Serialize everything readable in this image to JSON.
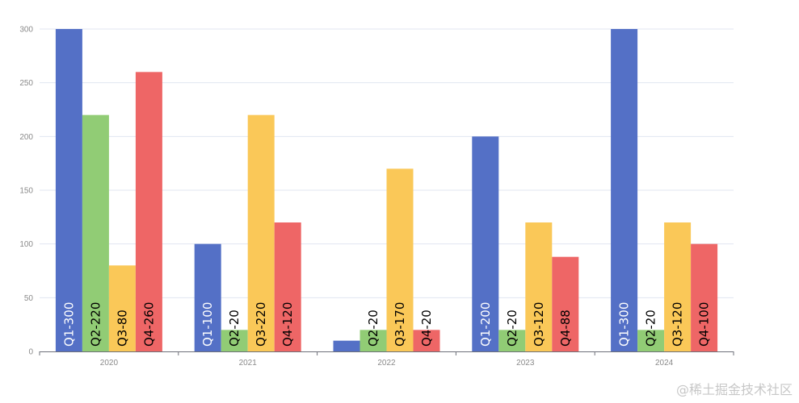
{
  "chart_data": {
    "type": "bar",
    "categories": [
      "2020",
      "2021",
      "2022",
      "2023",
      "2024"
    ],
    "series": [
      {
        "name": "Q1",
        "values": [
          300,
          100,
          10,
          200,
          300
        ],
        "color": "#5470c6"
      },
      {
        "name": "Q2",
        "values": [
          220,
          20,
          20,
          20,
          20
        ],
        "color": "#91cc75"
      },
      {
        "name": "Q3",
        "values": [
          80,
          220,
          170,
          120,
          120
        ],
        "color": "#fac858"
      },
      {
        "name": "Q4",
        "values": [
          260,
          120,
          20,
          88,
          100
        ],
        "color": "#ee6666"
      }
    ],
    "data_labels": [
      [
        "Q1-300",
        "Q2-220",
        "Q3-80",
        "Q4-260"
      ],
      [
        "Q1-100",
        "Q2-20",
        "Q3-220",
        "Q4-120"
      ],
      [
        "",
        "Q2-20",
        "Q3-170",
        "Q4-20"
      ],
      [
        "Q1-200",
        "Q2-20",
        "Q3-120",
        "Q4-88"
      ],
      [
        "Q1-300",
        "Q2-20",
        "Q3-120",
        "Q4-100"
      ]
    ],
    "y_ticks": [
      0,
      50,
      100,
      150,
      200,
      250,
      300
    ],
    "ylim": [
      0,
      300
    ],
    "grid": true,
    "title": "",
    "xlabel": "",
    "ylabel": ""
  },
  "watermark": "@稀土掘金技术社区"
}
